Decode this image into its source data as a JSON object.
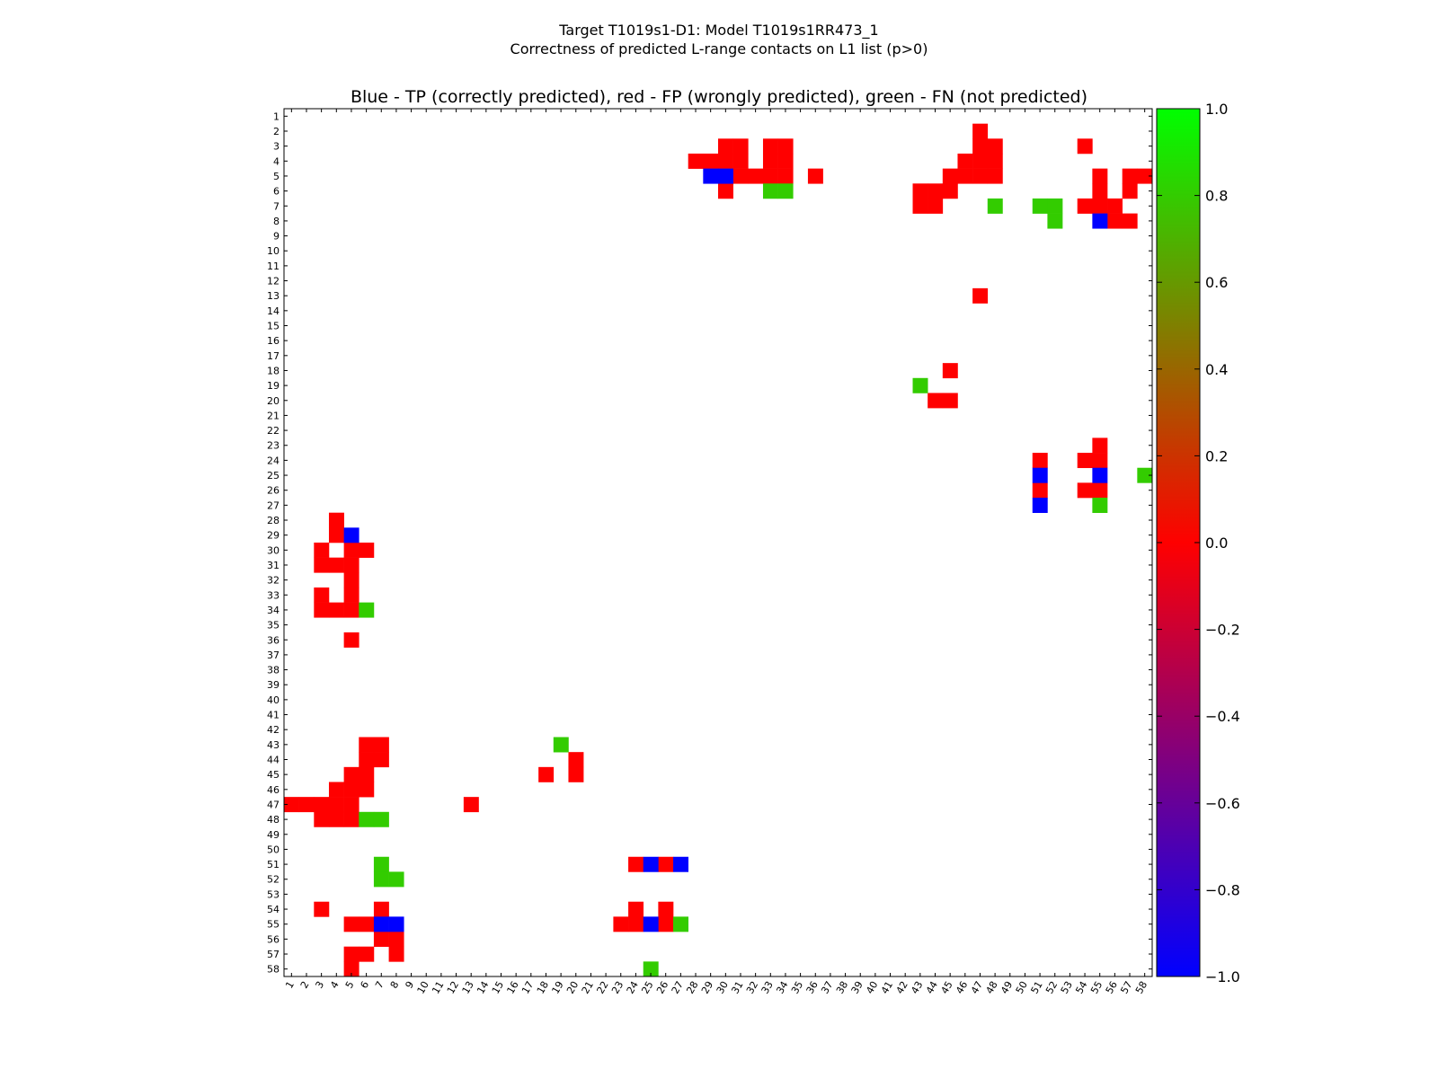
{
  "chart_data": {
    "type": "heatmap",
    "suptitle_line1": "Target T1019s1-D1: Model T1019s1RR473_1",
    "suptitle_line2": "Correctness of predicted L-range contacts on L1 list (p>0)",
    "title": "Blue - TP (correctly predicted), red - FP (wrongly predicted), green - FN (not predicted)",
    "n": 58,
    "x_tick_labels": [
      "1",
      "2",
      "3",
      "4",
      "5",
      "6",
      "7",
      "8",
      "9",
      "10",
      "11",
      "12",
      "13",
      "14",
      "15",
      "16",
      "17",
      "18",
      "19",
      "20",
      "21",
      "22",
      "23",
      "24",
      "25",
      "26",
      "27",
      "28",
      "29",
      "30",
      "31",
      "32",
      "33",
      "34",
      "35",
      "36",
      "37",
      "38",
      "39",
      "40",
      "41",
      "42",
      "43",
      "44",
      "45",
      "46",
      "47",
      "48",
      "49",
      "50",
      "51",
      "52",
      "53",
      "54",
      "55",
      "56",
      "57",
      "58"
    ],
    "y_tick_labels": [
      "1",
      "2",
      "3",
      "4",
      "5",
      "6",
      "7",
      "8",
      "9",
      "10",
      "11",
      "12",
      "13",
      "14",
      "15",
      "16",
      "17",
      "18",
      "19",
      "20",
      "21",
      "22",
      "23",
      "24",
      "25",
      "26",
      "27",
      "28",
      "29",
      "30",
      "31",
      "32",
      "33",
      "34",
      "35",
      "36",
      "37",
      "38",
      "39",
      "40",
      "41",
      "42",
      "43",
      "44",
      "45",
      "46",
      "47",
      "48",
      "49",
      "50",
      "51",
      "52",
      "53",
      "54",
      "55",
      "56",
      "57",
      "58"
    ],
    "cell_legend": {
      "TP": "blue",
      "FP": "red",
      "FN": "green"
    },
    "colors": {
      "TP": "#0000ff",
      "FP": "#ff0000",
      "FN": "#33cc00"
    },
    "colorbar": {
      "min": -1.0,
      "max": 1.0,
      "tick_values": [
        1.0,
        0.8,
        0.6,
        0.4,
        0.2,
        0.0,
        -0.2,
        -0.4,
        -0.6,
        -0.8,
        -1.0
      ],
      "tick_labels": [
        "1.0",
        "0.8",
        "0.6",
        "0.4",
        "0.2",
        "0.0",
        "−0.2",
        "−0.4",
        "−0.6",
        "−0.8",
        "−1.0"
      ],
      "gradient_stops": [
        "#00ff00",
        "#ff0000",
        "#0000ff"
      ]
    },
    "cells": {
      "TP": [
        [
          5,
          29
        ],
        [
          5,
          30
        ],
        [
          8,
          55
        ],
        [
          25,
          51
        ],
        [
          25,
          55
        ],
        [
          27,
          51
        ],
        [
          29,
          5
        ],
        [
          51,
          25
        ],
        [
          51,
          27
        ],
        [
          55,
          7
        ],
        [
          55,
          8
        ],
        [
          55,
          25
        ]
      ],
      "FN": [
        [
          6,
          33
        ],
        [
          6,
          34
        ],
        [
          7,
          48
        ],
        [
          7,
          51
        ],
        [
          7,
          52
        ],
        [
          8,
          52
        ],
        [
          19,
          43
        ],
        [
          25,
          58
        ],
        [
          27,
          55
        ],
        [
          34,
          6
        ],
        [
          43,
          19
        ],
        [
          48,
          6
        ],
        [
          48,
          7
        ],
        [
          51,
          7
        ],
        [
          52,
          7
        ],
        [
          52,
          8
        ],
        [
          55,
          27
        ],
        [
          58,
          25
        ]
      ],
      "FP": [
        [
          2,
          47
        ],
        [
          3,
          30
        ],
        [
          3,
          31
        ],
        [
          3,
          33
        ],
        [
          3,
          34
        ],
        [
          3,
          47
        ],
        [
          3,
          48
        ],
        [
          3,
          54
        ],
        [
          4,
          28
        ],
        [
          4,
          29
        ],
        [
          4,
          30
        ],
        [
          4,
          31
        ],
        [
          4,
          33
        ],
        [
          4,
          34
        ],
        [
          4,
          46
        ],
        [
          4,
          47
        ],
        [
          4,
          48
        ],
        [
          5,
          31
        ],
        [
          5,
          32
        ],
        [
          5,
          33
        ],
        [
          5,
          34
        ],
        [
          5,
          36
        ],
        [
          5,
          45
        ],
        [
          5,
          46
        ],
        [
          5,
          47
        ],
        [
          5,
          48
        ],
        [
          5,
          55
        ],
        [
          5,
          57
        ],
        [
          5,
          58
        ],
        [
          6,
          30
        ],
        [
          6,
          43
        ],
        [
          6,
          44
        ],
        [
          6,
          45
        ],
        [
          6,
          55
        ],
        [
          6,
          57
        ],
        [
          7,
          43
        ],
        [
          7,
          44
        ],
        [
          7,
          54
        ],
        [
          7,
          55
        ],
        [
          7,
          56
        ],
        [
          8,
          56
        ],
        [
          8,
          57
        ],
        [
          13,
          47
        ],
        [
          18,
          45
        ],
        [
          20,
          44
        ],
        [
          20,
          45
        ],
        [
          23,
          55
        ],
        [
          24,
          51
        ],
        [
          24,
          54
        ],
        [
          24,
          55
        ],
        [
          26,
          51
        ],
        [
          26,
          54
        ],
        [
          26,
          55
        ],
        [
          28,
          4
        ],
        [
          29,
          4
        ],
        [
          30,
          3
        ],
        [
          30,
          5
        ],
        [
          30,
          6
        ],
        [
          31,
          3
        ],
        [
          31,
          4
        ],
        [
          31,
          5
        ],
        [
          32,
          5
        ],
        [
          33,
          3
        ],
        [
          33,
          5
        ],
        [
          34,
          3
        ],
        [
          34,
          4
        ],
        [
          34,
          5
        ],
        [
          36,
          5
        ],
        [
          43,
          6
        ],
        [
          43,
          7
        ],
        [
          44,
          6
        ],
        [
          44,
          7
        ],
        [
          44,
          20
        ],
        [
          45,
          5
        ],
        [
          45,
          6
        ],
        [
          45,
          18
        ],
        [
          45,
          20
        ],
        [
          46,
          4
        ],
        [
          46,
          5
        ],
        [
          46,
          6
        ],
        [
          47,
          1
        ],
        [
          47,
          2
        ],
        [
          47,
          3
        ],
        [
          47,
          4
        ],
        [
          47,
          5
        ],
        [
          47,
          13
        ],
        [
          48,
          3
        ],
        [
          48,
          4
        ],
        [
          48,
          5
        ],
        [
          51,
          24
        ],
        [
          51,
          26
        ],
        [
          54,
          3
        ],
        [
          54,
          7
        ],
        [
          54,
          24
        ],
        [
          54,
          26
        ],
        [
          55,
          5
        ],
        [
          55,
          6
        ],
        [
          55,
          23
        ],
        [
          55,
          24
        ],
        [
          55,
          26
        ],
        [
          56,
          7
        ],
        [
          56,
          8
        ],
        [
          57,
          5
        ],
        [
          57,
          6
        ],
        [
          57,
          8
        ],
        [
          58,
          5
        ]
      ]
    }
  }
}
